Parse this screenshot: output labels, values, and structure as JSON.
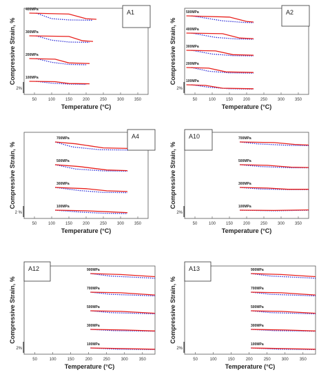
{
  "chart_data": [
    {
      "type": "line",
      "title": "A1",
      "xlabel": "Temperature (°C)",
      "ylabel": "Compressive Strain, %",
      "xlim": [
        20,
        380
      ],
      "xticks": [
        50,
        100,
        150,
        200,
        250,
        300,
        350
      ],
      "scale_bar_label": "2%",
      "curves": [
        {
          "label": "100MPa",
          "x_end": 210,
          "red": [
            [
              35,
              0.0
            ],
            [
              110,
              -0.05
            ],
            [
              150,
              -0.35
            ],
            [
              210,
              -0.4
            ]
          ],
          "blue": [
            [
              55,
              0.0
            ],
            [
              100,
              -0.3
            ],
            [
              150,
              -0.45
            ],
            [
              200,
              -0.5
            ]
          ]
        },
        {
          "label": "200MPa",
          "x_end": 210,
          "red": [
            [
              35,
              0.0
            ],
            [
              110,
              -0.1
            ],
            [
              150,
              -0.7
            ],
            [
              210,
              -0.8
            ]
          ],
          "blue": [
            [
              55,
              0.0
            ],
            [
              100,
              -0.6
            ],
            [
              150,
              -0.95
            ],
            [
              200,
              -1.0
            ]
          ]
        },
        {
          "label": "300MPa",
          "x_end": 220,
          "red": [
            [
              35,
              0.0
            ],
            [
              150,
              -0.1
            ],
            [
              190,
              -0.8
            ],
            [
              220,
              -0.9
            ]
          ],
          "blue": [
            [
              55,
              0.0
            ],
            [
              100,
              -0.7
            ],
            [
              150,
              -1.0
            ],
            [
              210,
              -1.05
            ]
          ]
        },
        {
          "label": "400MPa",
          "x_end": 230,
          "red": [
            [
              35,
              0.0
            ],
            [
              150,
              -0.15
            ],
            [
              200,
              -0.9
            ],
            [
              230,
              -1.0
            ]
          ],
          "blue": [
            [
              55,
              0.0
            ],
            [
              100,
              -0.9
            ],
            [
              150,
              -1.1
            ],
            [
              220,
              -1.15
            ]
          ]
        }
      ]
    },
    {
      "type": "line",
      "title": "A2",
      "xlabel": "Temperature (°C)",
      "ylabel": "Compressive Strain, %",
      "xlim": [
        20,
        380
      ],
      "xticks": [
        50,
        100,
        150,
        200,
        250,
        300,
        350
      ],
      "scale_bar_label": "2%",
      "curves": [
        {
          "label": "100MPa",
          "x_end": 220,
          "red": [
            [
              25,
              0.0
            ],
            [
              80,
              -0.1
            ],
            [
              130,
              -0.55
            ],
            [
              220,
              -0.65
            ]
          ],
          "blue": [
            [
              40,
              0.0
            ],
            [
              90,
              -0.4
            ],
            [
              150,
              -0.65
            ],
            [
              220,
              -0.7
            ]
          ]
        },
        {
          "label": "200MPa",
          "x_end": 220,
          "red": [
            [
              25,
              0.0
            ],
            [
              90,
              -0.1
            ],
            [
              140,
              -0.7
            ],
            [
              220,
              -0.8
            ]
          ],
          "blue": [
            [
              40,
              0.0
            ],
            [
              90,
              -0.6
            ],
            [
              150,
              -0.85
            ],
            [
              220,
              -0.9
            ]
          ]
        },
        {
          "label": "300MPa",
          "x_end": 220,
          "red": [
            [
              25,
              0.0
            ],
            [
              110,
              -0.1
            ],
            [
              160,
              -0.7
            ],
            [
              220,
              -0.8
            ]
          ],
          "blue": [
            [
              40,
              0.0
            ],
            [
              100,
              -0.6
            ],
            [
              160,
              -0.85
            ],
            [
              220,
              -0.9
            ]
          ]
        },
        {
          "label": "400MPa",
          "x_end": 220,
          "red": [
            [
              25,
              0.0
            ],
            [
              130,
              -0.1
            ],
            [
              180,
              -0.8
            ],
            [
              220,
              -0.9
            ]
          ],
          "blue": [
            [
              40,
              0.0
            ],
            [
              110,
              -0.7
            ],
            [
              170,
              -0.95
            ],
            [
              220,
              -1.0
            ]
          ]
        },
        {
          "label": "500MPa",
          "x_end": 220,
          "red": [
            [
              25,
              0.0
            ],
            [
              150,
              -0.2
            ],
            [
              200,
              -0.9
            ],
            [
              220,
              -1.0
            ]
          ],
          "blue": [
            [
              40,
              0.0
            ],
            [
              130,
              -0.8
            ],
            [
              190,
              -1.05
            ],
            [
              220,
              -1.1
            ]
          ]
        }
      ]
    },
    {
      "type": "line",
      "title": "A4",
      "xlabel": "Temperature (°C)",
      "ylabel": "Compressive Strain, %",
      "xlim": [
        20,
        380
      ],
      "xticks": [
        50,
        100,
        150,
        200,
        250,
        300,
        350
      ],
      "scale_bar_label": "2 %",
      "curves": [
        {
          "label": "100MPa",
          "x_end": 320,
          "red": [
            [
              110,
              0.0
            ],
            [
              200,
              -0.1
            ],
            [
              280,
              -0.3
            ],
            [
              320,
              -0.4
            ]
          ],
          "blue": [
            [
              110,
              0.0
            ],
            [
              180,
              -0.3
            ],
            [
              250,
              -0.5
            ],
            [
              320,
              -0.55
            ]
          ]
        },
        {
          "label": "300MPa",
          "x_end": 320,
          "red": [
            [
              110,
              0.0
            ],
            [
              200,
              -0.2
            ],
            [
              260,
              -0.55
            ],
            [
              320,
              -0.65
            ]
          ],
          "blue": [
            [
              110,
              0.0
            ],
            [
              180,
              -0.5
            ],
            [
              250,
              -0.8
            ],
            [
              320,
              -0.85
            ]
          ]
        },
        {
          "label": "500MPa",
          "x_end": 320,
          "red": [
            [
              110,
              0.0
            ],
            [
              180,
              -0.3
            ],
            [
              260,
              -0.85
            ],
            [
              320,
              -0.95
            ]
          ],
          "blue": [
            [
              110,
              0.0
            ],
            [
              170,
              -0.7
            ],
            [
              250,
              -1.0
            ],
            [
              320,
              -1.05
            ]
          ]
        },
        {
          "label": "700MPa",
          "x_end": 320,
          "red": [
            [
              110,
              0.0
            ],
            [
              170,
              -0.3
            ],
            [
              250,
              -0.95
            ],
            [
              320,
              -1.05
            ]
          ],
          "blue": [
            [
              110,
              0.0
            ],
            [
              160,
              -0.8
            ],
            [
              240,
              -1.25
            ],
            [
              320,
              -1.3
            ]
          ]
        }
      ]
    },
    {
      "type": "line",
      "title": "A10",
      "xlabel": "Temperature (°C)",
      "ylabel": "Compressive Strain, %",
      "xlim": [
        20,
        380
      ],
      "xticks": [
        50,
        100,
        150,
        200,
        250,
        300,
        350
      ],
      "scale_bar_label": "2%",
      "curves": [
        {
          "label": "100MPa",
          "x_end": 380,
          "red": [
            [
              180,
              0.0
            ],
            [
              280,
              -0.05
            ],
            [
              380,
              0.05
            ]
          ],
          "blue": [
            [
              180,
              0.0
            ],
            [
              280,
              -0.1
            ],
            [
              380,
              0.0
            ]
          ]
        },
        {
          "label": "300MPa",
          "x_end": 380,
          "red": [
            [
              180,
              0.0
            ],
            [
              260,
              -0.1
            ],
            [
              320,
              -0.3
            ],
            [
              380,
              -0.3
            ]
          ],
          "blue": [
            [
              180,
              0.0
            ],
            [
              240,
              -0.25
            ],
            [
              320,
              -0.35
            ],
            [
              380,
              -0.35
            ]
          ]
        },
        {
          "label": "500MPa",
          "x_end": 380,
          "red": [
            [
              180,
              0.0
            ],
            [
              260,
              -0.1
            ],
            [
              330,
              -0.4
            ],
            [
              380,
              -0.45
            ]
          ],
          "blue": [
            [
              180,
              0.0
            ],
            [
              240,
              -0.3
            ],
            [
              330,
              -0.5
            ],
            [
              380,
              -0.5
            ]
          ]
        },
        {
          "label": "700MPa",
          "x_end": 380,
          "red": [
            [
              180,
              0.0
            ],
            [
              280,
              -0.1
            ],
            [
              340,
              -0.4
            ],
            [
              380,
              -0.5
            ]
          ],
          "blue": [
            [
              180,
              0.0
            ],
            [
              230,
              -0.3
            ],
            [
              320,
              -0.55
            ],
            [
              380,
              -0.6
            ]
          ]
        }
      ]
    },
    {
      "type": "line",
      "title": "A12",
      "xlabel": "Temperature (°C)",
      "ylabel": "Compressive Strain, %",
      "xlim": [
        20,
        385
      ],
      "xticks": [
        50,
        100,
        150,
        200,
        250,
        300,
        350
      ],
      "scale_bar_label": "2%",
      "curves": [
        {
          "label": "100MPa",
          "x_end": 385,
          "red": [
            [
              205,
              0.0
            ],
            [
              300,
              -0.1
            ],
            [
              385,
              -0.2
            ]
          ],
          "blue": [
            [
              205,
              0.0
            ],
            [
              280,
              -0.2
            ],
            [
              385,
              -0.25
            ]
          ]
        },
        {
          "label": "300MPa",
          "x_end": 385,
          "red": [
            [
              205,
              0.0
            ],
            [
              300,
              -0.1
            ],
            [
              385,
              -0.25
            ]
          ],
          "blue": [
            [
              205,
              0.0
            ],
            [
              270,
              -0.2
            ],
            [
              385,
              -0.3
            ]
          ]
        },
        {
          "label": "500MPa",
          "x_end": 385,
          "red": [
            [
              205,
              0.0
            ],
            [
              290,
              -0.1
            ],
            [
              385,
              -0.4
            ]
          ],
          "blue": [
            [
              205,
              0.0
            ],
            [
              260,
              -0.3
            ],
            [
              385,
              -0.5
            ]
          ]
        },
        {
          "label": "700MPa",
          "x_end": 385,
          "red": [
            [
              205,
              0.0
            ],
            [
              290,
              -0.1
            ],
            [
              385,
              -0.45
            ]
          ],
          "blue": [
            [
              205,
              0.0
            ],
            [
              260,
              -0.35
            ],
            [
              385,
              -0.6
            ]
          ]
        },
        {
          "label": "900MPa",
          "x_end": 385,
          "red": [
            [
              205,
              0.0
            ],
            [
              290,
              -0.15
            ],
            [
              385,
              -0.5
            ]
          ],
          "blue": [
            [
              205,
              0.0
            ],
            [
              260,
              -0.4
            ],
            [
              385,
              -0.75
            ]
          ]
        }
      ]
    },
    {
      "type": "line",
      "title": "A13",
      "xlabel": "Temperature (°C)",
      "ylabel": "Compressive Strain, %",
      "xlim": [
        20,
        385
      ],
      "xticks": [
        50,
        100,
        150,
        200,
        250,
        300,
        350
      ],
      "scale_bar_label": "2%",
      "curves": [
        {
          "label": "100MPa",
          "x_end": 385,
          "red": [
            [
              205,
              0.0
            ],
            [
              300,
              -0.1
            ],
            [
              385,
              -0.2
            ]
          ],
          "blue": [
            [
              205,
              0.0
            ],
            [
              280,
              -0.2
            ],
            [
              385,
              -0.25
            ]
          ]
        },
        {
          "label": "300MPa",
          "x_end": 385,
          "red": [
            [
              205,
              0.0
            ],
            [
              300,
              -0.1
            ],
            [
              385,
              -0.25
            ]
          ],
          "blue": [
            [
              205,
              0.0
            ],
            [
              270,
              -0.2
            ],
            [
              385,
              -0.3
            ]
          ]
        },
        {
          "label": "500MPa",
          "x_end": 385,
          "red": [
            [
              205,
              0.0
            ],
            [
              290,
              -0.1
            ],
            [
              385,
              -0.4
            ]
          ],
          "blue": [
            [
              205,
              0.0
            ],
            [
              260,
              -0.3
            ],
            [
              385,
              -0.5
            ]
          ]
        },
        {
          "label": "700MPa",
          "x_end": 385,
          "red": [
            [
              205,
              0.0
            ],
            [
              290,
              -0.1
            ],
            [
              385,
              -0.45
            ]
          ],
          "blue": [
            [
              205,
              0.0
            ],
            [
              260,
              -0.35
            ],
            [
              385,
              -0.6
            ]
          ]
        },
        {
          "label": "900MPa",
          "x_end": 385,
          "red": [
            [
              205,
              0.0
            ],
            [
              290,
              -0.15
            ],
            [
              385,
              -0.5
            ]
          ],
          "blue": [
            [
              205,
              0.0
            ],
            [
              260,
              -0.4
            ],
            [
              385,
              -0.75
            ]
          ]
        }
      ]
    }
  ],
  "colors": {
    "red_series": "#e8201c",
    "blue_series": "#2b2bd6",
    "axis": "#555555",
    "background": "#ffffff"
  }
}
